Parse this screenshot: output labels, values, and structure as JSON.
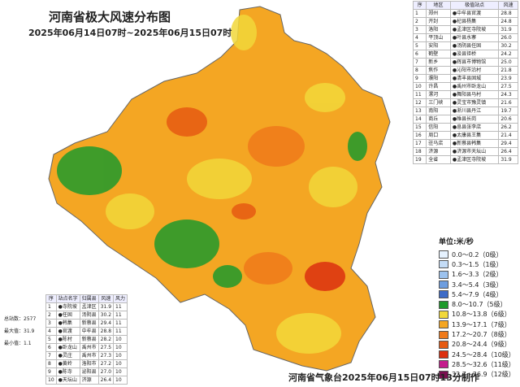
{
  "title": "河南省极大风速分布图",
  "subtitle": "2025年06月14日07时~2025年06月15日07时",
  "region_table": {
    "headers": [
      "序",
      "地区",
      "极值站点",
      "风速"
    ],
    "rows": [
      [
        "1",
        "郑州",
        "●中牟县官渡",
        "28.8"
      ],
      [
        "2",
        "开封",
        "●杞县杨集",
        "24.8"
      ],
      [
        "3",
        "洛阳",
        "●孟津区寺院坡",
        "31.9"
      ],
      [
        "4",
        "平顶山",
        "●叶县水寨",
        "26.0"
      ],
      [
        "5",
        "安阳",
        "●汤阴县任固",
        "30.2"
      ],
      [
        "6",
        "鹤壁",
        "●浚县钜桥",
        "24.2"
      ],
      [
        "7",
        "新乡",
        "●辉县市博物馆",
        "25.0"
      ],
      [
        "8",
        "焦作",
        "●沁阳市沿村",
        "21.8"
      ],
      [
        "9",
        "濮阳",
        "●清丰县固城",
        "23.9"
      ],
      [
        "10",
        "许昌",
        "●禹州市卧龙山",
        "27.5"
      ],
      [
        "11",
        "漯河",
        "●舞阳县马村",
        "24.3"
      ],
      [
        "12",
        "三门峡",
        "●灵宝市豫灵镇",
        "21.6"
      ],
      [
        "13",
        "南阳",
        "●淅川县丹江",
        "19.7"
      ],
      [
        "14",
        "商丘",
        "●睢县长岗",
        "20.6"
      ],
      [
        "15",
        "信阳",
        "●息县张李店",
        "26.2"
      ],
      [
        "16",
        "周口",
        "●太康县王集",
        "21.4"
      ],
      [
        "17",
        "驻马店",
        "●新蔡县韩集",
        "29.4"
      ],
      [
        "18",
        "济源",
        "●济源市天坛山",
        "26.4"
      ],
      [
        "19",
        "全省",
        "●孟津区寺院坡",
        "31.9"
      ]
    ]
  },
  "top_stations": {
    "headers": [
      "序",
      "站点名字",
      "归属县",
      "风速",
      "风力"
    ],
    "rows": [
      [
        "1",
        "●寺院坡",
        "孟津区",
        "31.9",
        "11"
      ],
      [
        "2",
        "●任固",
        "汤阴县",
        "30.2",
        "11"
      ],
      [
        "3",
        "●韩集",
        "新蔡县",
        "29.4",
        "11"
      ],
      [
        "4",
        "●官渡",
        "中牟县",
        "28.8",
        "11"
      ],
      [
        "5",
        "●陈村",
        "新蔡县",
        "28.2",
        "10"
      ],
      [
        "6",
        "●卧龙山",
        "禹州市",
        "27.5",
        "10"
      ],
      [
        "7",
        "●灵庄",
        "禹州市",
        "27.3",
        "10"
      ],
      [
        "8",
        "●黄岭",
        "洛阳市",
        "27.2",
        "10"
      ],
      [
        "9",
        "●陈寺",
        "泌阳县",
        "27.0",
        "10"
      ],
      [
        "10",
        "●天坛山",
        "济源",
        "26.4",
        "10"
      ]
    ]
  },
  "stats": [
    "总站数：2577",
    "最大值：31.9",
    "最小值：1.1"
  ],
  "legend": {
    "unit": "单位:米/秒",
    "items": [
      {
        "label": "0.0～0.2（0级）",
        "color": "#e6f2ff"
      },
      {
        "label": "0.3～1.5（1级）",
        "color": "#c4dcf6"
      },
      {
        "label": "1.6～3.3（2级）",
        "color": "#9cc2ee"
      },
      {
        "label": "3.4～5.4（3级）",
        "color": "#6d9ddf"
      },
      {
        "label": "5.4～7.9（4级）",
        "color": "#3d6bc6"
      },
      {
        "label": "8.0～10.7（5级）",
        "color": "#1f9a2c"
      },
      {
        "label": "10.8～13.8（6级）",
        "color": "#f2d83a"
      },
      {
        "label": "13.9～17.1（7级）",
        "color": "#f4a623"
      },
      {
        "label": "17.2～20.7（8级）",
        "color": "#f07a1a"
      },
      {
        "label": "20.8～24.4（9级）",
        "color": "#e65a12"
      },
      {
        "label": "24.5～28.4（10级）",
        "color": "#dc3010"
      },
      {
        "label": "28.5～32.6（11级）",
        "color": "#c41c8c"
      },
      {
        "label": "32.7～36.9（12级）",
        "color": "#7a1050"
      }
    ]
  },
  "footer": "河南省气象台2025年06月15日07时13分制作"
}
